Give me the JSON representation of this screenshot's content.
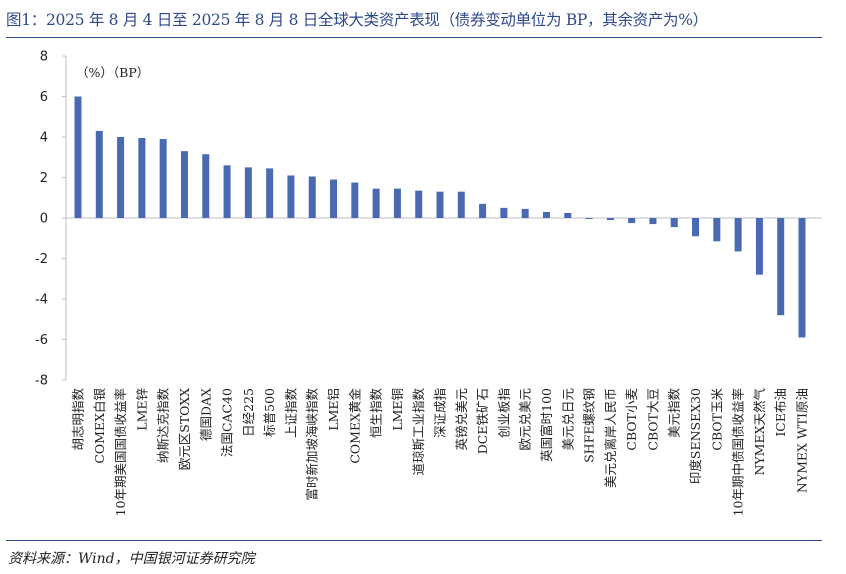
{
  "header": {
    "title": "图1：2025 年 8 月 4 日至 2025 年 8 月 8 日全球大类资产表现（债券变动单位为 BP，其余资产为%）"
  },
  "footer": {
    "source": "资料来源：Wind，中国银河证券研究院"
  },
  "colors": {
    "bar": "#4a69b5",
    "accent": "#2e4a8c"
  },
  "chart_data": {
    "type": "bar",
    "title": "",
    "xlabel": "",
    "ylabel": "",
    "unit_note": "（%）（BP）",
    "ylim": [
      -8,
      8
    ],
    "yticks": [
      8,
      6,
      4,
      2,
      0,
      -2,
      -4,
      -6,
      -8
    ],
    "grid": false,
    "categories": [
      "胡志明指数",
      "COMEX白银",
      "10年期美国国债收益率",
      "LME锌",
      "纳斯达克指数",
      "欧元区STOXX",
      "德国DAX",
      "法国CAC40",
      "日经225",
      "标普500",
      "上证指数",
      "富时新加坡海峡指数",
      "LME铝",
      "COMEX黄金",
      "恒生指数",
      "LME铜",
      "道琼斯工业指数",
      "深证成指",
      "英镑兑美元",
      "DCE铁矿石",
      "创业板指",
      "欧元兑美元",
      "英国富时100",
      "美元兑日元",
      "SHFE螺纹钢",
      "美元兑离岸人民币",
      "CBOT小麦",
      "CBOT大豆",
      "美元指数",
      "印度SENSEX30",
      "CBOT玉米",
      "10年期中债国债收益率",
      "NYMEX天然气",
      "ICE布油",
      "NYMEX WTI原油"
    ],
    "values": [
      6.0,
      4.3,
      4.0,
      3.95,
      3.9,
      3.3,
      3.15,
      2.6,
      2.5,
      2.45,
      2.1,
      2.05,
      1.9,
      1.75,
      1.45,
      1.45,
      1.35,
      1.3,
      1.3,
      0.7,
      0.5,
      0.45,
      0.3,
      0.25,
      -0.02,
      -0.1,
      -0.25,
      -0.3,
      -0.45,
      -0.9,
      -1.15,
      -1.65,
      -2.8,
      -4.8,
      -5.9
    ]
  }
}
